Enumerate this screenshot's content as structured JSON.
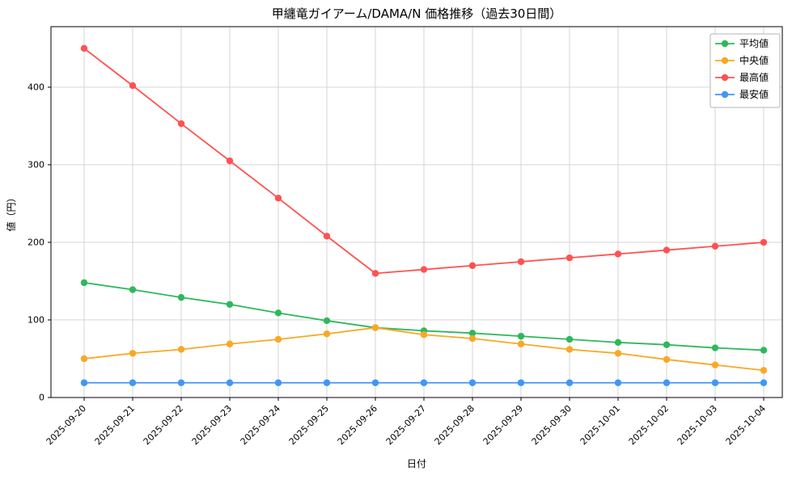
{
  "chart_data": {
    "type": "line",
    "title": "甲纏竜ガイアーム/DAMA/N 価格推移（過去30日間）",
    "xlabel": "日付",
    "ylabel": "値（円）",
    "categories": [
      "2025-09-20",
      "2025-09-21",
      "2025-09-22",
      "2025-09-23",
      "2025-09-24",
      "2025-09-25",
      "2025-09-26",
      "2025-09-27",
      "2025-09-28",
      "2025-09-29",
      "2025-09-30",
      "2025-10-01",
      "2025-10-02",
      "2025-10-03",
      "2025-10-04"
    ],
    "series": [
      {
        "name": "平均値",
        "color": "#2eb85c",
        "values": [
          148,
          139,
          129,
          120,
          109,
          99,
          90,
          86,
          83,
          79,
          75,
          71,
          68,
          64,
          61
        ]
      },
      {
        "name": "中央値",
        "color": "#f9a825",
        "values": [
          50,
          57,
          62,
          69,
          75,
          82,
          90,
          81,
          76,
          69,
          62,
          57,
          49,
          42,
          35
        ]
      },
      {
        "name": "最高値",
        "color": "#ff5252",
        "values": [
          450,
          402,
          353,
          305,
          257,
          208,
          160,
          165,
          170,
          175,
          180,
          185,
          190,
          195,
          200
        ]
      },
      {
        "name": "最安値",
        "color": "#4196f6",
        "values": [
          19,
          19,
          19,
          19,
          19,
          19,
          19,
          19,
          19,
          19,
          19,
          19,
          19,
          19,
          19
        ]
      }
    ],
    "ylim": [
      0,
      478
    ],
    "yticks": [
      0,
      100,
      200,
      300,
      400
    ],
    "grid": true,
    "legend_position": "upper right"
  },
  "colors": {
    "grid": "#d0d0d0",
    "axis": "#000000",
    "background": "#ffffff",
    "legend_border": "#b3b3b3"
  }
}
